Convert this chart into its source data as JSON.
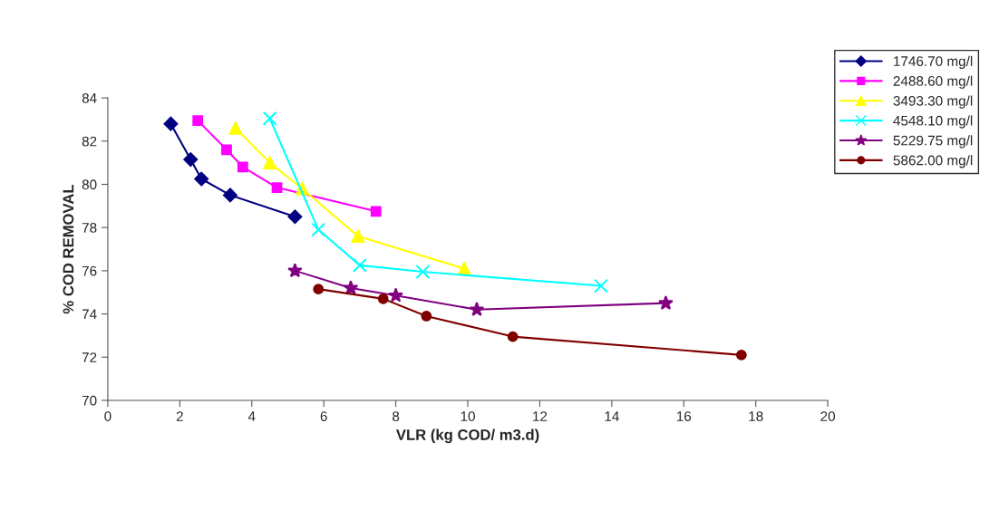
{
  "chart_data": {
    "type": "line",
    "xlabel": "VLR (kg COD/ m3.d)",
    "ylabel": "% COD REMOVAL",
    "xlim": [
      0,
      20
    ],
    "xticks": [
      0,
      2,
      4,
      6,
      8,
      10,
      12,
      14,
      16,
      18,
      20
    ],
    "ylim": [
      70,
      84
    ],
    "yticks": [
      70,
      72,
      74,
      76,
      78,
      80,
      82,
      84
    ],
    "grid": false,
    "legend": "top right",
    "series": [
      {
        "name": "1746.70 mg/l",
        "color": "#000080",
        "marker": "diamond",
        "x": [
          1.75,
          2.3,
          2.6,
          3.4,
          5.2
        ],
        "values": [
          82.8,
          81.15,
          80.25,
          79.5,
          78.5
        ]
      },
      {
        "name": "2488.60 mg/l",
        "color": "#ff00ff",
        "marker": "square",
        "x": [
          2.5,
          3.3,
          3.75,
          4.7,
          7.45
        ],
        "values": [
          82.95,
          81.6,
          80.8,
          79.85,
          78.75
        ]
      },
      {
        "name": "3493.30 mg/l",
        "color": "#ffff00",
        "marker": "triangle",
        "x": [
          3.55,
          4.5,
          5.4,
          6.95,
          9.9
        ],
        "values": [
          82.6,
          81.0,
          79.8,
          77.6,
          76.1
        ]
      },
      {
        "name": "4548.10 mg/l",
        "color": "#00ffff",
        "marker": "cross",
        "x": [
          4.5,
          5.85,
          7.0,
          8.75,
          13.7
        ],
        "values": [
          83.05,
          77.9,
          76.25,
          75.95,
          75.3
        ]
      },
      {
        "name": "5229.75 mg/l",
        "color": "#800080",
        "marker": "star",
        "x": [
          5.2,
          6.75,
          8.0,
          10.25,
          15.5
        ],
        "values": [
          76.0,
          75.2,
          74.85,
          74.2,
          74.5
        ]
      },
      {
        "name": "5862.00 mg/l",
        "color": "#800000",
        "marker": "circle",
        "x": [
          5.85,
          7.65,
          8.85,
          11.25,
          17.6
        ],
        "values": [
          75.15,
          74.7,
          73.9,
          72.95,
          72.1
        ]
      }
    ]
  }
}
